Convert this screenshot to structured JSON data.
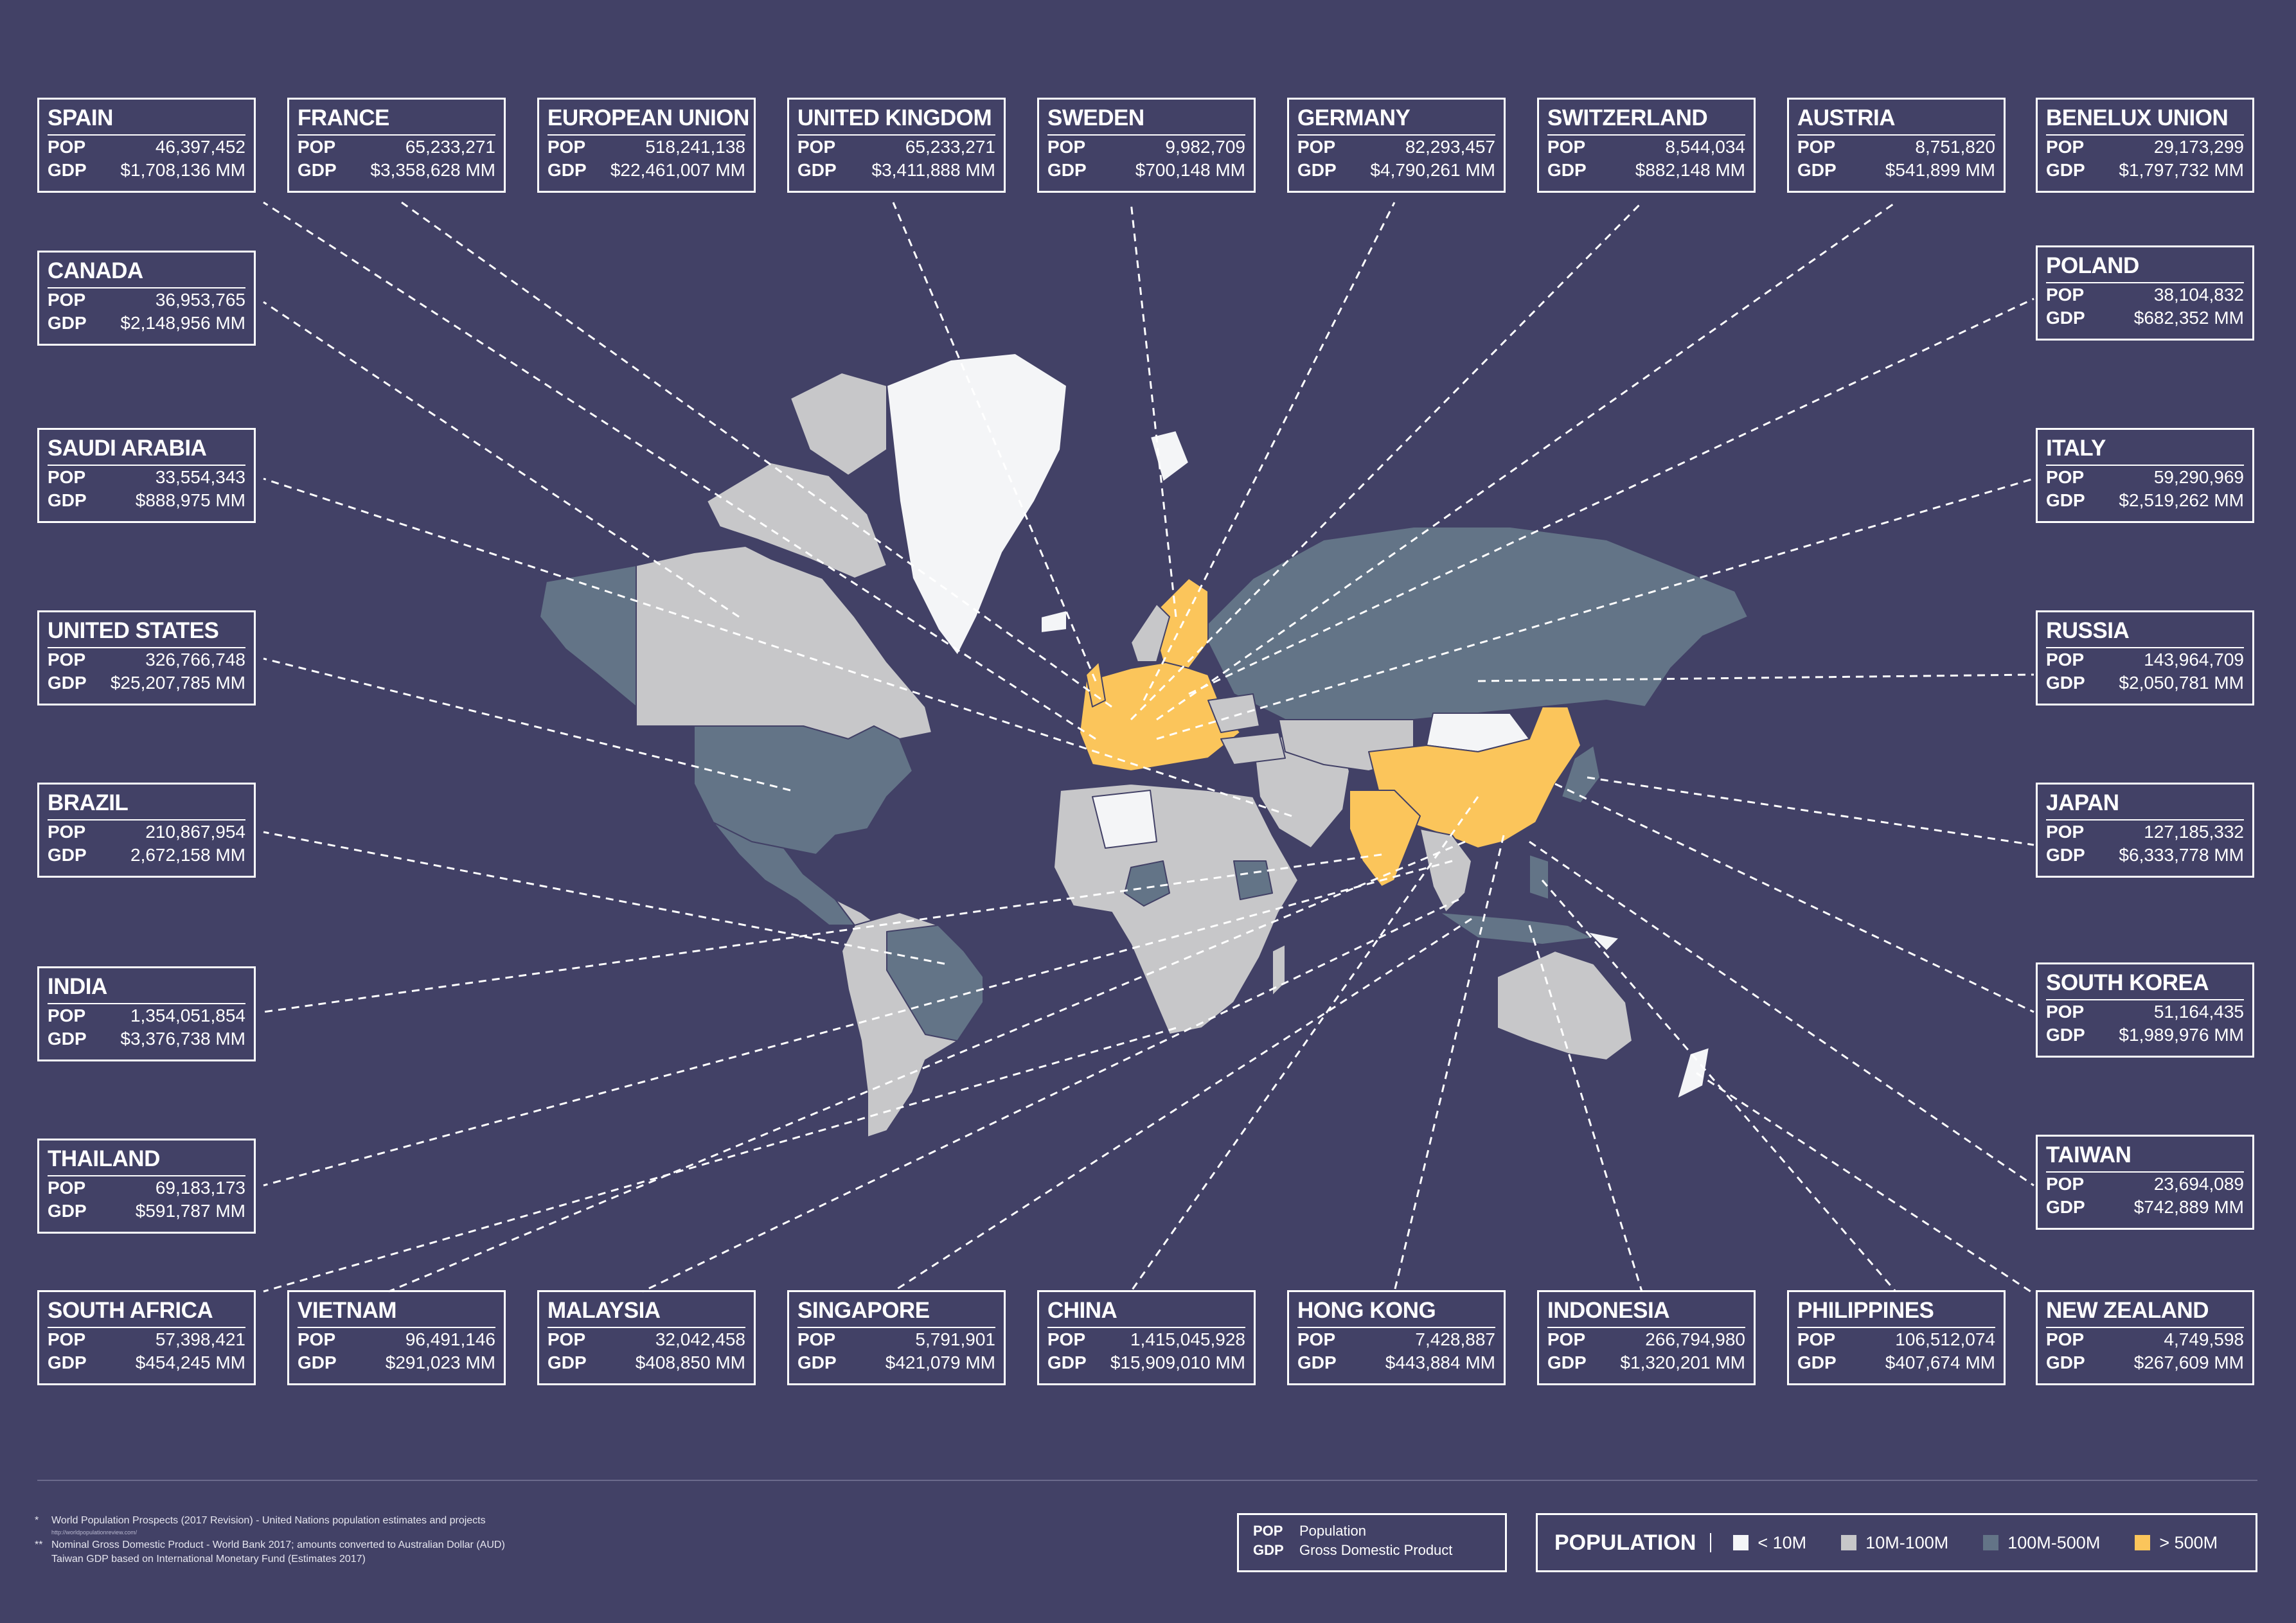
{
  "colors": {
    "background": "#424166",
    "lt10m": "#f4f5f7",
    "m10_100": "#c7c7c9",
    "m100_500": "#637487",
    "gt500m": "#fbc55b",
    "ocean": "#424166"
  },
  "boxes": [
    {
      "name": "SPAIN",
      "pop": "46,397,452",
      "gdp": "$1,708,136 MM"
    },
    {
      "name": "FRANCE",
      "pop": "65,233,271",
      "gdp": "$3,358,628 MM"
    },
    {
      "name": "EUROPEAN UNION",
      "pop": "518,241,138",
      "gdp": "$22,461,007 MM"
    },
    {
      "name": "UNITED KINGDOM",
      "pop": "65,233,271",
      "gdp": "$3,411,888 MM"
    },
    {
      "name": "SWEDEN",
      "pop": "9,982,709",
      "gdp": "$700,148 MM"
    },
    {
      "name": "GERMANY",
      "pop": "82,293,457",
      "gdp": "$4,790,261 MM"
    },
    {
      "name": "SWITZERLAND",
      "pop": "8,544,034",
      "gdp": "$882,148 MM"
    },
    {
      "name": "AUSTRIA",
      "pop": "8,751,820",
      "gdp": "$541,899 MM"
    },
    {
      "name": "BENELUX UNION",
      "pop": "29,173,299",
      "gdp": "$1,797,732 MM"
    },
    {
      "name": "CANADA",
      "pop": "36,953,765",
      "gdp": "$2,148,956 MM"
    },
    {
      "name": "SAUDI ARABIA",
      "pop": "33,554,343",
      "gdp": "$888,975 MM"
    },
    {
      "name": "UNITED STATES",
      "pop": "326,766,748",
      "gdp": "$25,207,785 MM"
    },
    {
      "name": "BRAZIL",
      "pop": "210,867,954",
      "gdp": "2,672,158 MM"
    },
    {
      "name": "INDIA",
      "pop": "1,354,051,854",
      "gdp": "$3,376,738 MM"
    },
    {
      "name": "THAILAND",
      "pop": "69,183,173",
      "gdp": "$591,787 MM"
    },
    {
      "name": "POLAND",
      "pop": "38,104,832",
      "gdp": "$682,352 MM"
    },
    {
      "name": "ITALY",
      "pop": "59,290,969",
      "gdp": "$2,519,262 MM"
    },
    {
      "name": "RUSSIA",
      "pop": "143,964,709",
      "gdp": "$2,050,781 MM"
    },
    {
      "name": "JAPAN",
      "pop": "127,185,332",
      "gdp": "$6,333,778 MM"
    },
    {
      "name": "SOUTH KOREA",
      "pop": "51,164,435",
      "gdp": "$1,989,976 MM"
    },
    {
      "name": "TAIWAN",
      "pop": "23,694,089",
      "gdp": "$742,889 MM"
    },
    {
      "name": "SOUTH AFRICA",
      "pop": "57,398,421",
      "gdp": "$454,245 MM"
    },
    {
      "name": "VIETNAM",
      "pop": "96,491,146",
      "gdp": "$291,023 MM"
    },
    {
      "name": "MALAYSIA",
      "pop": "32,042,458",
      "gdp": "$408,850 MM"
    },
    {
      "name": "SINGAPORE",
      "pop": "5,791,901",
      "gdp": "$421,079 MM"
    },
    {
      "name": "CHINA",
      "pop": "1,415,045,928",
      "gdp": "$15,909,010 MM"
    },
    {
      "name": "HONG KONG",
      "pop": "7,428,887",
      "gdp": "$443,884 MM"
    },
    {
      "name": "INDONESIA",
      "pop": "266,794,980",
      "gdp": "$1,320,201 MM"
    },
    {
      "name": "PHILIPPINES",
      "pop": "106,512,074",
      "gdp": "$407,674 MM"
    },
    {
      "name": "NEW ZEALAND",
      "pop": "4,749,598",
      "gdp": "$267,609 MM"
    }
  ],
  "labels": {
    "pop": "POP",
    "gdp": "GDP"
  },
  "footnotes": {
    "star1": "*",
    "note1": "World Population Prospects (2017 Revision) - United Nations population estimates and projects",
    "url": "http://worldpopulationreview.com/",
    "star2": "**",
    "note2": "Nominal Gross Domestic Product - World Bank 2017; amounts converted to Australian Dollar (AUD)",
    "note3": "Taiwan GDP based on International Monetary Fund (Estimates 2017)"
  },
  "key": {
    "pop_abbr": "POP",
    "pop_full": "Population",
    "gdp_abbr": "GDP",
    "gdp_full": "Gross Domestic Product"
  },
  "legend": {
    "title": "POPULATION",
    "items": [
      {
        "label": "< 10M",
        "color": "#f4f5f7"
      },
      {
        "label": "10M-100M",
        "color": "#c7c7c9"
      },
      {
        "label": "100M-500M",
        "color": "#637487"
      },
      {
        "label": "> 500M",
        "color": "#fbc55b"
      }
    ]
  }
}
